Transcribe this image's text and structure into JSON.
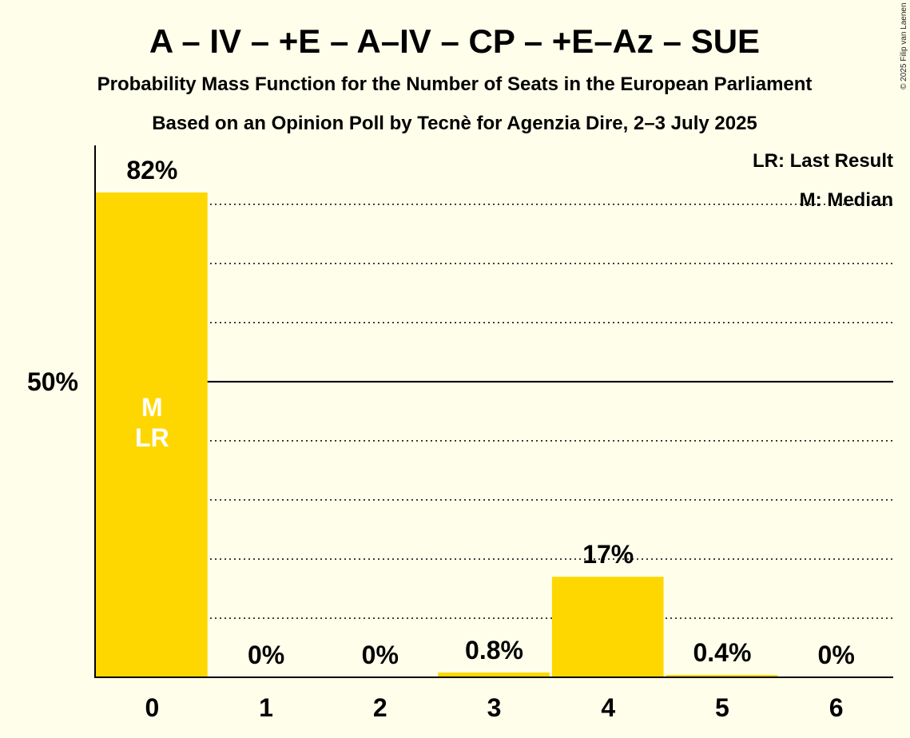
{
  "chart_data": {
    "type": "bar",
    "title": "A – IV – +E – A–IV – CP – +E–Az – SUE",
    "subtitle": "Probability Mass Function for the Number of Seats in the European Parliament",
    "subtitle2": "Based on an Opinion Poll by Tecnè for Agenzia Dire, 2–3 July 2025",
    "copyright": "© 2025 Filip van Laenen",
    "legend": {
      "lr": "LR: Last Result",
      "m": "M: Median",
      "placement": "top-right"
    },
    "categories": [
      "0",
      "1",
      "2",
      "3",
      "4",
      "5",
      "6"
    ],
    "values": [
      82,
      0,
      0,
      0.8,
      17,
      0.4,
      0
    ],
    "value_labels": [
      "82%",
      "0%",
      "0%",
      "0.8%",
      "17%",
      "0.4%",
      "0%"
    ],
    "bar_markers": [
      "M\nLR",
      "",
      "",
      "",
      "",
      "",
      ""
    ],
    "y_tick_label": "50%",
    "y_tick_value": 50,
    "ylim": [
      0,
      89
    ],
    "gridlines": [
      10,
      20,
      30,
      40,
      60,
      70,
      80
    ],
    "grid": true,
    "bar_color": "#FFD700"
  }
}
